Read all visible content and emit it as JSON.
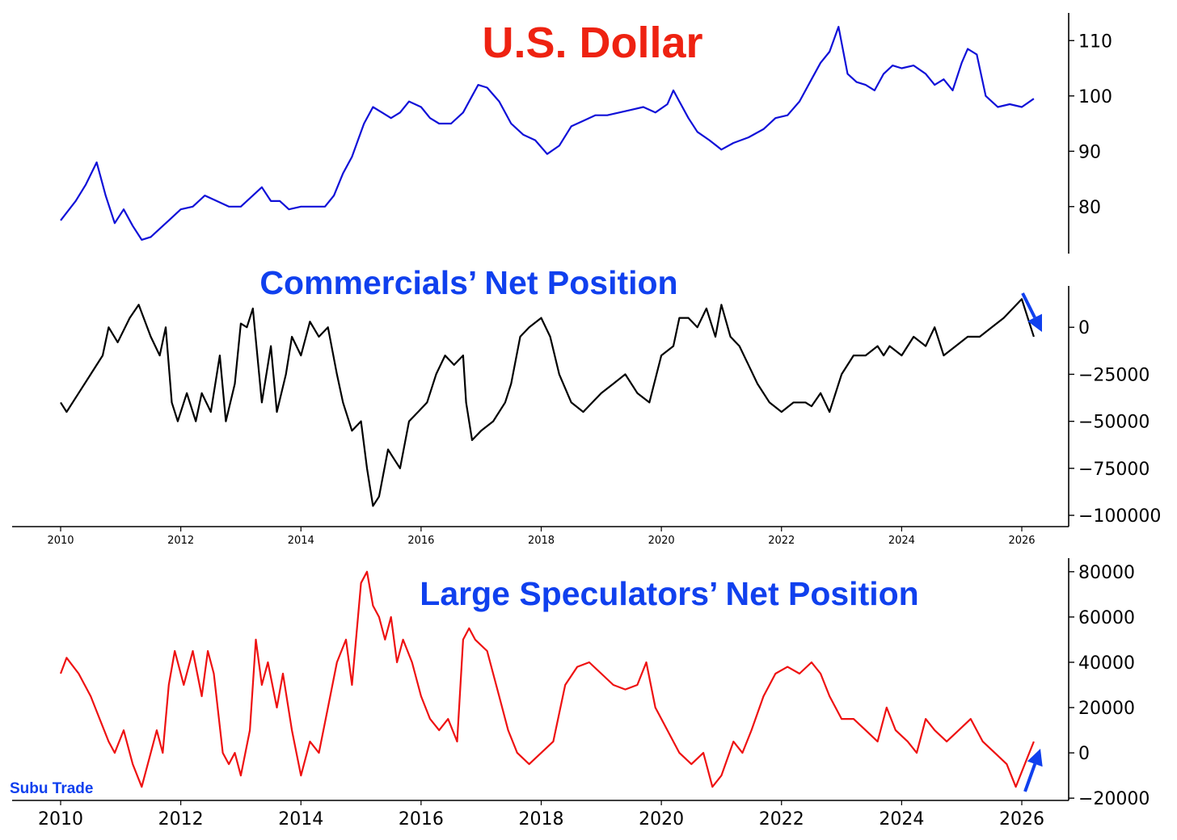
{
  "watermark": "Subu Trade",
  "colors": {
    "usd": "#1010d8",
    "commercials": "#000000",
    "speculators": "#ee1111",
    "title_red": "#ee2211",
    "title_blue": "#1040ee",
    "arrow": "#1040ee"
  },
  "chart_data": [
    {
      "type": "line",
      "title": "U.S. Dollar",
      "xlim": [
        2010,
        2026.9
      ],
      "ylim": [
        71.5,
        115
      ],
      "y_ticks": [
        80,
        90,
        100,
        110
      ],
      "y_tick_labels": [
        "80",
        "90",
        "100",
        "110"
      ],
      "x_ticks_shown": false,
      "series": [
        {
          "color": "#1010d8",
          "x": [
            2010.0,
            2010.25,
            2010.42,
            2010.6,
            2010.75,
            2010.9,
            2011.05,
            2011.2,
            2011.35,
            2011.5,
            2011.65,
            2011.8,
            2012.0,
            2012.2,
            2012.4,
            2012.6,
            2012.8,
            2013.0,
            2013.2,
            2013.35,
            2013.5,
            2013.65,
            2013.8,
            2014.0,
            2014.2,
            2014.4,
            2014.55,
            2014.7,
            2014.85,
            2014.95,
            2015.05,
            2015.2,
            2015.35,
            2015.5,
            2015.65,
            2015.8,
            2016.0,
            2016.15,
            2016.3,
            2016.5,
            2016.7,
            2016.85,
            2016.95,
            2017.1,
            2017.3,
            2017.5,
            2017.7,
            2017.9,
            2018.1,
            2018.3,
            2018.5,
            2018.7,
            2018.9,
            2019.1,
            2019.3,
            2019.5,
            2019.7,
            2019.9,
            2020.1,
            2020.2,
            2020.3,
            2020.45,
            2020.6,
            2020.8,
            2021.0,
            2021.2,
            2021.45,
            2021.7,
            2021.9,
            2022.1,
            2022.3,
            2022.5,
            2022.65,
            2022.8,
            2022.95,
            2023.1,
            2023.25,
            2023.4,
            2023.55,
            2023.7,
            2023.85,
            2024.0,
            2024.2,
            2024.4,
            2024.55,
            2024.7,
            2024.85,
            2025.0,
            2025.1,
            2025.25,
            2025.4,
            2025.6,
            2025.8,
            2026.0,
            2026.2
          ],
          "y": [
            77.5,
            81,
            84,
            88,
            82,
            77,
            79.5,
            76.5,
            74,
            74.5,
            76,
            77.5,
            79.5,
            80,
            82,
            81,
            80,
            80,
            82,
            83.5,
            81,
            81,
            79.5,
            80,
            80,
            80,
            82,
            86,
            89,
            92,
            95,
            98,
            97,
            96,
            97,
            99,
            98,
            96,
            95,
            95,
            97,
            100,
            102,
            101.5,
            99,
            95,
            93,
            92,
            89.5,
            91,
            94.5,
            95.5,
            96.5,
            96.5,
            97,
            97.5,
            98,
            97,
            98.5,
            101,
            99,
            96,
            93.5,
            92,
            90.3,
            91.5,
            92.5,
            94,
            96,
            96.5,
            99,
            103,
            106,
            108,
            112.5,
            104,
            102.5,
            102,
            101,
            104,
            105.5,
            105,
            105.5,
            104,
            102,
            103,
            101,
            106,
            108.5,
            107.5,
            100,
            98,
            98.5,
            98,
            99.5
          ]
        }
      ]
    },
    {
      "type": "line",
      "title": "Commercials’ Net Position",
      "xlim": [
        2010,
        2026.9
      ],
      "ylim": [
        -106000,
        22000
      ],
      "y_ticks": [
        0,
        -25000,
        -50000,
        -75000,
        -100000
      ],
      "y_tick_labels": [
        "0",
        "−25000",
        "−50000",
        "−75000",
        "−100000"
      ],
      "x_ticks": [
        2010,
        2012,
        2014,
        2016,
        2018,
        2020,
        2022,
        2024,
        2026
      ],
      "x_tick_labels": [
        "2010",
        "2012",
        "2014",
        "2016",
        "2018",
        "2020",
        "2022",
        "2024",
        "2026"
      ],
      "annotation": "arrow pointing down",
      "series": [
        {
          "color": "#000000",
          "x": [
            2010.0,
            2010.1,
            2010.3,
            2010.5,
            2010.7,
            2010.8,
            2010.95,
            2011.15,
            2011.3,
            2011.5,
            2011.65,
            2011.75,
            2011.85,
            2011.95,
            2012.1,
            2012.25,
            2012.35,
            2012.5,
            2012.65,
            2012.75,
            2012.9,
            2013.0,
            2013.1,
            2013.2,
            2013.35,
            2013.5,
            2013.6,
            2013.75,
            2013.85,
            2014.0,
            2014.15,
            2014.3,
            2014.45,
            2014.6,
            2014.7,
            2014.85,
            2015.0,
            2015.1,
            2015.2,
            2015.3,
            2015.45,
            2015.55,
            2015.65,
            2015.8,
            2015.95,
            2016.1,
            2016.25,
            2016.4,
            2016.55,
            2016.7,
            2016.75,
            2016.85,
            2017.0,
            2017.2,
            2017.4,
            2017.5,
            2017.65,
            2017.8,
            2018.0,
            2018.15,
            2018.3,
            2018.5,
            2018.7,
            2018.85,
            2019.0,
            2019.2,
            2019.4,
            2019.6,
            2019.8,
            2020.0,
            2020.2,
            2020.3,
            2020.45,
            2020.6,
            2020.75,
            2020.9,
            2021.0,
            2021.15,
            2021.3,
            2021.45,
            2021.6,
            2021.8,
            2022.0,
            2022.2,
            2022.4,
            2022.5,
            2022.65,
            2022.8,
            2023.0,
            2023.2,
            2023.4,
            2023.6,
            2023.7,
            2023.8,
            2024.0,
            2024.2,
            2024.4,
            2024.55,
            2024.7,
            2024.9,
            2025.1,
            2025.3,
            2025.5,
            2025.7,
            2025.85,
            2026.0,
            2026.1,
            2026.2
          ],
          "y": [
            -40000,
            -45000,
            -35000,
            -25000,
            -15000,
            0,
            -8000,
            5000,
            12000,
            -5000,
            -15000,
            0,
            -40000,
            -50000,
            -35000,
            -50000,
            -35000,
            -45000,
            -15000,
            -50000,
            -30000,
            2000,
            0,
            10000,
            -40000,
            -10000,
            -45000,
            -25000,
            -5000,
            -15000,
            3000,
            -5000,
            0,
            -25000,
            -40000,
            -55000,
            -50000,
            -75000,
            -95000,
            -90000,
            -65000,
            -70000,
            -75000,
            -50000,
            -45000,
            -40000,
            -25000,
            -15000,
            -20000,
            -15000,
            -40000,
            -60000,
            -55000,
            -50000,
            -40000,
            -30000,
            -5000,
            0,
            5000,
            -5000,
            -25000,
            -40000,
            -45000,
            -40000,
            -35000,
            -30000,
            -25000,
            -35000,
            -40000,
            -15000,
            -10000,
            5000,
            5000,
            0,
            10000,
            -5000,
            12000,
            -5000,
            -10000,
            -20000,
            -30000,
            -40000,
            -45000,
            -40000,
            -40000,
            -42000,
            -35000,
            -45000,
            -25000,
            -15000,
            -15000,
            -10000,
            -15000,
            -10000,
            -15000,
            -5000,
            -10000,
            0,
            -15000,
            -10000,
            -5000,
            -5000,
            0,
            5000,
            10000,
            15000,
            5000,
            -5000
          ]
        }
      ]
    },
    {
      "type": "line",
      "title": "Large Speculators’ Net Position",
      "xlim": [
        2010,
        2026.9
      ],
      "ylim": [
        -21000,
        86000
      ],
      "y_ticks": [
        80000,
        60000,
        40000,
        20000,
        0,
        -20000
      ],
      "y_tick_labels": [
        "80000",
        "60000",
        "40000",
        "20000",
        "0",
        "−20000"
      ],
      "x_ticks": [
        2010,
        2012,
        2014,
        2016,
        2018,
        2020,
        2022,
        2024,
        2026
      ],
      "x_tick_labels": [
        "2010",
        "2012",
        "2014",
        "2016",
        "2018",
        "2020",
        "2022",
        "2024",
        "2026"
      ],
      "annotation": "arrow pointing up",
      "series": [
        {
          "color": "#ee1111",
          "x": [
            2010.0,
            2010.1,
            2010.3,
            2010.5,
            2010.65,
            2010.8,
            2010.9,
            2011.05,
            2011.2,
            2011.35,
            2011.5,
            2011.6,
            2011.7,
            2011.8,
            2011.9,
            2012.05,
            2012.2,
            2012.35,
            2012.45,
            2012.55,
            2012.7,
            2012.8,
            2012.9,
            2013.0,
            2013.15,
            2013.25,
            2013.35,
            2013.45,
            2013.6,
            2013.7,
            2013.85,
            2014.0,
            2014.15,
            2014.3,
            2014.45,
            2014.6,
            2014.75,
            2014.85,
            2015.0,
            2015.1,
            2015.2,
            2015.3,
            2015.4,
            2015.5,
            2015.6,
            2015.7,
            2015.85,
            2016.0,
            2016.15,
            2016.3,
            2016.45,
            2016.6,
            2016.7,
            2016.8,
            2016.9,
            2017.1,
            2017.3,
            2017.45,
            2017.6,
            2017.8,
            2018.0,
            2018.2,
            2018.4,
            2018.6,
            2018.8,
            2019.0,
            2019.2,
            2019.4,
            2019.6,
            2019.75,
            2019.9,
            2020.1,
            2020.3,
            2020.5,
            2020.7,
            2020.85,
            2021.0,
            2021.2,
            2021.35,
            2021.5,
            2021.7,
            2021.9,
            2022.1,
            2022.3,
            2022.5,
            2022.65,
            2022.8,
            2023.0,
            2023.2,
            2023.4,
            2023.6,
            2023.75,
            2023.9,
            2024.1,
            2024.25,
            2024.4,
            2024.55,
            2024.75,
            2024.95,
            2025.15,
            2025.35,
            2025.55,
            2025.75,
            2025.9,
            2026.05,
            2026.2
          ],
          "y": [
            35000,
            42000,
            35000,
            25000,
            15000,
            5000,
            0,
            10000,
            -5000,
            -15000,
            0,
            10000,
            0,
            30000,
            45000,
            30000,
            45000,
            25000,
            45000,
            35000,
            0,
            -5000,
            0,
            -10000,
            10000,
            50000,
            30000,
            40000,
            20000,
            35000,
            10000,
            -10000,
            5000,
            0,
            20000,
            40000,
            50000,
            30000,
            75000,
            80000,
            65000,
            60000,
            50000,
            60000,
            40000,
            50000,
            40000,
            25000,
            15000,
            10000,
            15000,
            5000,
            50000,
            55000,
            50000,
            45000,
            25000,
            10000,
            0,
            -5000,
            0,
            5000,
            30000,
            38000,
            40000,
            35000,
            30000,
            28000,
            30000,
            40000,
            20000,
            10000,
            0,
            -5000,
            0,
            -15000,
            -10000,
            5000,
            0,
            10000,
            25000,
            35000,
            38000,
            35000,
            40000,
            35000,
            25000,
            15000,
            15000,
            10000,
            5000,
            20000,
            10000,
            5000,
            0,
            15000,
            10000,
            5000,
            10000,
            15000,
            5000,
            0,
            -5000,
            -15000,
            -5000,
            5000
          ]
        }
      ]
    }
  ]
}
